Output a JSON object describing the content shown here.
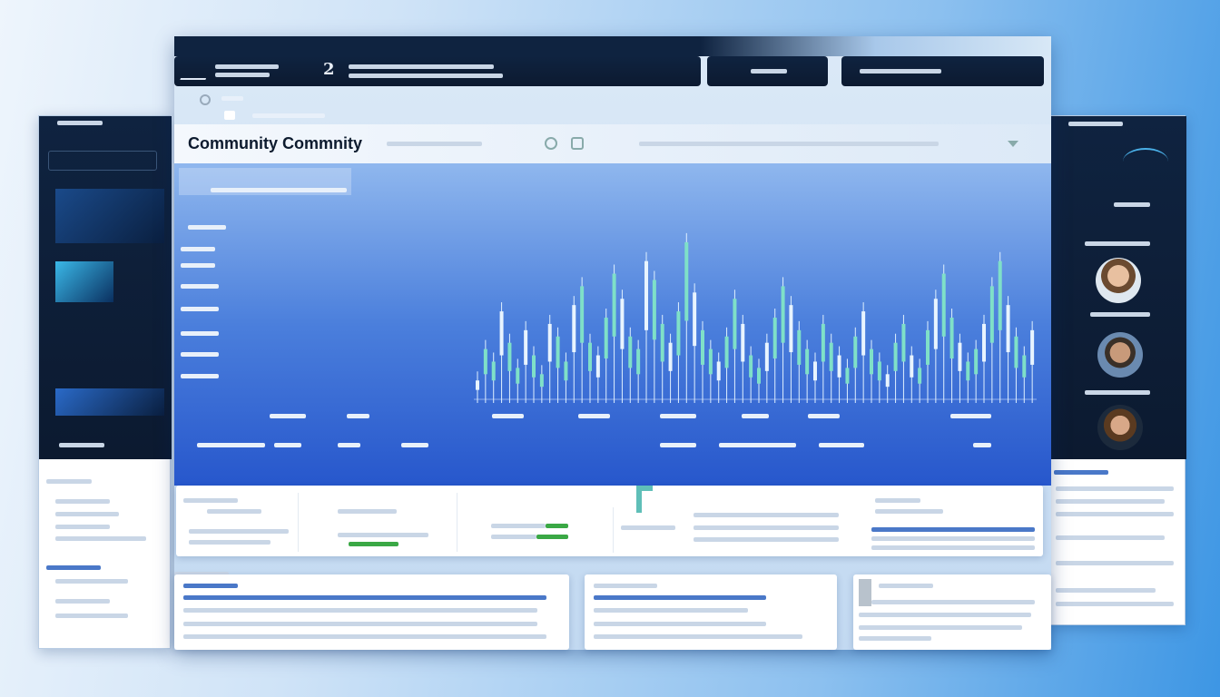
{
  "header": {
    "step_number": "2"
  },
  "title_bar": {
    "title": "Community Commnity"
  },
  "colors": {
    "accent": "#2a5fd0",
    "header_dark": "#0f2340",
    "candle_up": "#7fe0c8",
    "candle_down": "#e8f4ff",
    "positive": "#3aa845"
  },
  "chart_data": {
    "type": "candlestick",
    "series": [
      {
        "values": [
          3,
          8,
          6,
          14,
          9,
          5,
          11,
          7,
          4,
          12,
          10,
          6,
          15,
          18,
          9,
          7,
          13,
          20,
          16,
          10,
          8,
          22,
          19,
          12,
          9,
          14,
          25,
          17,
          11,
          8,
          6,
          10,
          16,
          12,
          7,
          5,
          9,
          13,
          18,
          15,
          11,
          8,
          6,
          12,
          9,
          7,
          5,
          10,
          14,
          8,
          6,
          4,
          9,
          12,
          7,
          5,
          11,
          16,
          20,
          13,
          9,
          6,
          8,
          12,
          18,
          22,
          15,
          10,
          7,
          11
        ]
      }
    ]
  },
  "right_panel": {
    "avatars": 3
  },
  "icons": [
    "logo-icon",
    "settings-icon",
    "refresh-icon",
    "chevron-down-icon",
    "user-avatar"
  ]
}
